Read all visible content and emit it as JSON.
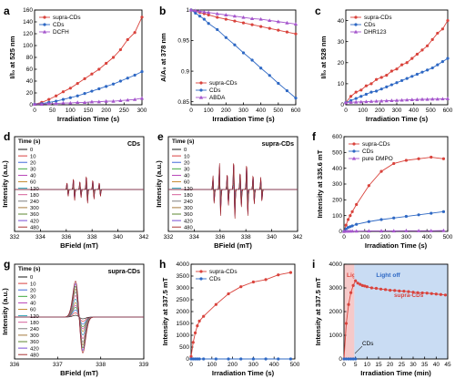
{
  "colors": {
    "red": "#d9433c",
    "blue": "#2e68c4",
    "purple": "#a555cc",
    "green": "#5a9e3a"
  },
  "panels": [
    {
      "id": "a",
      "label": "a"
    },
    {
      "id": "b",
      "label": "b"
    },
    {
      "id": "c",
      "label": "c"
    },
    {
      "id": "d",
      "label": "d"
    },
    {
      "id": "e",
      "label": "e"
    },
    {
      "id": "f",
      "label": "f"
    },
    {
      "id": "g",
      "label": "g"
    },
    {
      "id": "h",
      "label": "h"
    },
    {
      "id": "i",
      "label": "i"
    }
  ],
  "chart_data": [
    {
      "panel": "a",
      "type": "line",
      "xlabel": "Irradiation Time (s)",
      "ylabel": "I/I₀ at 525 nm",
      "xlim": [
        0,
        300
      ],
      "ylim": [
        0,
        160
      ],
      "xticks": [
        0,
        50,
        100,
        150,
        200,
        250,
        300
      ],
      "yticks": [
        0,
        20,
        40,
        60,
        80,
        100,
        120,
        140,
        160
      ],
      "legend": "top-left",
      "series": [
        {
          "name": "supra-CDs",
          "color": "red",
          "marker": "circle",
          "x": [
            0,
            20,
            40,
            60,
            80,
            100,
            120,
            140,
            160,
            180,
            200,
            220,
            240,
            260,
            280,
            300
          ],
          "y": [
            1,
            4,
            9,
            15,
            22,
            28,
            36,
            44,
            52,
            60,
            70,
            80,
            93,
            110,
            122,
            148
          ]
        },
        {
          "name": "CDs",
          "color": "blue",
          "marker": "circle",
          "x": [
            0,
            20,
            40,
            60,
            80,
            100,
            120,
            140,
            160,
            180,
            200,
            220,
            240,
            260,
            280,
            300
          ],
          "y": [
            1,
            2,
            4,
            6,
            9,
            12,
            15,
            19,
            23,
            27,
            31,
            35,
            40,
            45,
            50,
            56
          ]
        },
        {
          "name": "DCFH",
          "color": "purple",
          "marker": "triangle",
          "x": [
            0,
            20,
            40,
            60,
            80,
            100,
            120,
            140,
            160,
            180,
            200,
            220,
            240,
            260,
            280,
            300
          ],
          "y": [
            1,
            1,
            2,
            2,
            3,
            3,
            4,
            4,
            5,
            5,
            6,
            6,
            7,
            8,
            9,
            11
          ]
        }
      ]
    },
    {
      "panel": "b",
      "type": "line",
      "xlabel": "Irradiation Time (s)",
      "ylabel": "A/A₀ at 378 nm",
      "xlim": [
        0,
        600
      ],
      "ylim": [
        0.845,
        1.0
      ],
      "xticks": [
        0,
        100,
        200,
        300,
        400,
        500,
        600
      ],
      "yticks": [
        0.85,
        0.9,
        0.95,
        1.0
      ],
      "legend": "bottom-left",
      "series": [
        {
          "name": "supra-CDs",
          "color": "red",
          "marker": "circle",
          "x": [
            0,
            25,
            50,
            75,
            100,
            150,
            200,
            250,
            300,
            350,
            400,
            450,
            500,
            550,
            600
          ],
          "y": [
            1.0,
            0.998,
            0.996,
            0.994,
            0.992,
            0.988,
            0.985,
            0.982,
            0.979,
            0.976,
            0.973,
            0.97,
            0.967,
            0.964,
            0.961
          ]
        },
        {
          "name": "CDs",
          "color": "blue",
          "marker": "circle",
          "x": [
            0,
            25,
            50,
            75,
            100,
            150,
            200,
            250,
            300,
            350,
            400,
            450,
            500,
            550,
            600
          ],
          "y": [
            1.0,
            0.995,
            0.99,
            0.985,
            0.978,
            0.968,
            0.955,
            0.943,
            0.93,
            0.918,
            0.905,
            0.893,
            0.88,
            0.868,
            0.856
          ]
        },
        {
          "name": "ABDA",
          "color": "purple",
          "marker": "triangle",
          "x": [
            0,
            25,
            50,
            75,
            100,
            150,
            200,
            250,
            300,
            350,
            400,
            450,
            500,
            550,
            600
          ],
          "y": [
            1.0,
            0.999,
            0.998,
            0.997,
            0.996,
            0.994,
            0.992,
            0.99,
            0.988,
            0.986,
            0.985,
            0.983,
            0.981,
            0.979,
            0.977
          ]
        }
      ]
    },
    {
      "panel": "c",
      "type": "line",
      "xlabel": "Irradiation Time (s)",
      "ylabel": "I/I₀ at 528 nm",
      "xlim": [
        0,
        600
      ],
      "ylim": [
        0,
        45
      ],
      "xticks": [
        0,
        100,
        200,
        300,
        400,
        500,
        600
      ],
      "yticks": [
        0,
        10,
        20,
        30,
        40
      ],
      "legend": "top-left",
      "series": [
        {
          "name": "supra-CDs",
          "color": "red",
          "marker": "circle",
          "x": [
            0,
            30,
            60,
            90,
            120,
            150,
            180,
            210,
            240,
            270,
            300,
            330,
            360,
            390,
            420,
            450,
            480,
            510,
            540,
            570,
            600
          ],
          "y": [
            1,
            4,
            6,
            7,
            9,
            10,
            12,
            13,
            14,
            16,
            17,
            19,
            20,
            22,
            24,
            26,
            28,
            31,
            34,
            36,
            40
          ]
        },
        {
          "name": "CDs",
          "color": "blue",
          "marker": "circle",
          "x": [
            0,
            30,
            60,
            90,
            120,
            150,
            180,
            210,
            240,
            270,
            300,
            330,
            360,
            390,
            420,
            450,
            480,
            510,
            540,
            570,
            600
          ],
          "y": [
            1,
            2,
            3,
            4,
            5,
            6,
            6.5,
            7.5,
            8.5,
            9.5,
            10.5,
            11.5,
            12.5,
            13.5,
            14.5,
            15.5,
            16.5,
            17.5,
            19,
            20.5,
            22
          ]
        },
        {
          "name": "DHR123",
          "color": "purple",
          "marker": "triangle",
          "x": [
            0,
            30,
            60,
            90,
            120,
            150,
            180,
            210,
            240,
            270,
            300,
            330,
            360,
            390,
            420,
            450,
            480,
            510,
            540,
            570,
            600
          ],
          "y": [
            1,
            1.2,
            1.3,
            1.4,
            1.5,
            1.6,
            1.7,
            1.8,
            1.9,
            2.0,
            2.1,
            2.2,
            2.3,
            2.4,
            2.5,
            2.6,
            2.6,
            2.7,
            2.7,
            2.8,
            2.9
          ]
        }
      ]
    },
    {
      "panel": "d",
      "type": "line",
      "title": "CDs",
      "xlabel": "BField (mT)",
      "ylabel": "Intensity (a.u.)",
      "xlim": [
        332,
        342
      ],
      "xticks": [
        332,
        334,
        336,
        338,
        340,
        342
      ],
      "legend_title": "Time (s)",
      "legend": [
        "0",
        "10",
        "20",
        "30",
        "40",
        "60",
        "120",
        "180",
        "240",
        "300",
        "360",
        "420",
        "480"
      ],
      "line_centers_mT": [
        336.1,
        336.6,
        337.1,
        337.6,
        338.1,
        338.6
      ],
      "peak_amplitude_relative": [
        0,
        0.05,
        0.1,
        0.15,
        0.2,
        0.25,
        0.35,
        0.45,
        0.55,
        0.65,
        0.75,
        0.85,
        0.95
      ]
    },
    {
      "panel": "e",
      "type": "line",
      "title": "supra-CDs",
      "xlabel": "BField (mT)",
      "ylabel": "Intensity (a.u.)",
      "xlim": [
        332,
        342
      ],
      "xticks": [
        332,
        334,
        336,
        338,
        340,
        342
      ],
      "legend_title": "Time (s)",
      "legend": [
        "0",
        "10",
        "20",
        "30",
        "40",
        "60",
        "120",
        "180",
        "240",
        "300",
        "360",
        "420",
        "480"
      ],
      "line_centers_mT": [
        335.5,
        336.0,
        336.6,
        337.1,
        337.6,
        338.1,
        338.6,
        339.2
      ],
      "peak_amplitude_relative": [
        0,
        0.08,
        0.16,
        0.24,
        0.32,
        0.4,
        0.5,
        0.6,
        0.7,
        0.78,
        0.86,
        0.93,
        1.0
      ]
    },
    {
      "panel": "f",
      "type": "line",
      "xlabel": "Irradiation Time (s)",
      "ylabel": "Intensity at 335.6 mT",
      "xlim": [
        0,
        500
      ],
      "ylim": [
        0,
        600
      ],
      "xticks": [
        0,
        100,
        200,
        300,
        400,
        500
      ],
      "yticks": [
        0,
        100,
        200,
        300,
        400,
        500,
        600
      ],
      "legend": "top-left",
      "series": [
        {
          "name": "supra-CDs",
          "color": "red",
          "marker": "circle",
          "x": [
            0,
            10,
            20,
            30,
            40,
            60,
            120,
            180,
            240,
            300,
            360,
            420,
            480
          ],
          "y": [
            0,
            40,
            75,
            100,
            125,
            170,
            290,
            380,
            430,
            450,
            460,
            470,
            460
          ]
        },
        {
          "name": "CDs",
          "color": "blue",
          "marker": "circle",
          "x": [
            0,
            10,
            20,
            30,
            40,
            60,
            120,
            180,
            240,
            300,
            360,
            420,
            480
          ],
          "y": [
            0,
            15,
            25,
            30,
            35,
            45,
            62,
            75,
            85,
            95,
            105,
            115,
            125
          ]
        },
        {
          "name": "pure DMPO",
          "color": "purple",
          "marker": "triangle",
          "x": [
            0,
            10,
            20,
            30,
            40,
            60,
            120,
            180,
            240,
            300,
            360,
            420,
            480
          ],
          "y": [
            0,
            1,
            1,
            2,
            2,
            2,
            3,
            3,
            3,
            4,
            4,
            4,
            5
          ]
        }
      ]
    },
    {
      "panel": "g",
      "type": "line",
      "title": "supra-CDs",
      "xlabel": "BField (mT)",
      "ylabel": "Intensity (a.u.)",
      "xlim": [
        336,
        339
      ],
      "xticks": [
        336,
        337,
        338,
        339
      ],
      "legend_title": "Time (s)",
      "legend": [
        "0",
        "10",
        "20",
        "30",
        "40",
        "60",
        "120",
        "180",
        "240",
        "300",
        "360",
        "420",
        "480"
      ],
      "line_center_mT": 337.5,
      "peak_amplitude_relative": [
        0.05,
        0.12,
        0.2,
        0.27,
        0.33,
        0.4,
        0.5,
        0.6,
        0.7,
        0.78,
        0.86,
        0.93,
        1.0
      ]
    },
    {
      "panel": "h",
      "type": "line",
      "xlabel": "Irradiation Time (s)",
      "ylabel": "Intensity at 337.5 mT",
      "xlim": [
        0,
        500
      ],
      "ylim": [
        0,
        4000
      ],
      "xticks": [
        0,
        100,
        200,
        300,
        400,
        500
      ],
      "yticks": [
        0,
        500,
        1000,
        1500,
        2000,
        2500,
        3000,
        3500,
        4000
      ],
      "legend": "top-left",
      "series": [
        {
          "name": "supra-CDs",
          "color": "red",
          "marker": "circle",
          "x": [
            0,
            10,
            20,
            30,
            40,
            60,
            120,
            180,
            240,
            300,
            360,
            420,
            480
          ],
          "y": [
            100,
            700,
            1100,
            1400,
            1600,
            1800,
            2300,
            2750,
            3050,
            3250,
            3350,
            3550,
            3650
          ]
        },
        {
          "name": "CDs",
          "color": "blue",
          "marker": "circle",
          "x": [
            0,
            10,
            20,
            30,
            40,
            60,
            120,
            180,
            240,
            300,
            360,
            420,
            480
          ],
          "y": [
            0,
            0,
            0,
            0,
            0,
            0,
            0,
            0,
            0,
            0,
            0,
            0,
            0
          ]
        }
      ]
    },
    {
      "panel": "i",
      "type": "line",
      "xlabel": "Irradiation Time (min)",
      "ylabel": "Intensity at 337.5 mT",
      "xlim": [
        0,
        45
      ],
      "ylim": [
        0,
        4000
      ],
      "xticks": [
        0,
        5,
        10,
        15,
        20,
        25,
        30,
        35,
        40,
        45
      ],
      "yticks": [
        0,
        1000,
        2000,
        3000,
        4000
      ],
      "shaded_regions": [
        {
          "label": "Light on",
          "from": 0,
          "to": 4.5,
          "color": "#f6c9c9"
        },
        {
          "label": "Light off",
          "from": 4.5,
          "to": 45,
          "color": "#c9dcf3"
        }
      ],
      "annotations": [
        "supra-CDs",
        "CDs"
      ],
      "series": [
        {
          "name": "supra-CDs",
          "color": "red",
          "marker": "circle",
          "x": [
            0,
            1,
            2,
            3,
            4,
            5,
            6,
            7,
            8,
            9,
            10,
            12,
            14,
            16,
            18,
            20,
            22,
            24,
            26,
            28,
            30,
            32,
            34,
            36,
            38,
            40,
            42,
            44
          ],
          "y": [
            0,
            1500,
            2300,
            2800,
            3100,
            3300,
            3200,
            3150,
            3100,
            3080,
            3050,
            3000,
            2980,
            2950,
            2930,
            2900,
            2890,
            2870,
            2860,
            2840,
            2820,
            2800,
            2790,
            2780,
            2760,
            2740,
            2720,
            2700
          ]
        },
        {
          "name": "CDs",
          "color": "blue",
          "marker": "circle",
          "x": [
            0,
            1,
            2,
            3,
            4,
            5
          ],
          "y": [
            0,
            0,
            0,
            0,
            0,
            0
          ]
        }
      ]
    }
  ]
}
